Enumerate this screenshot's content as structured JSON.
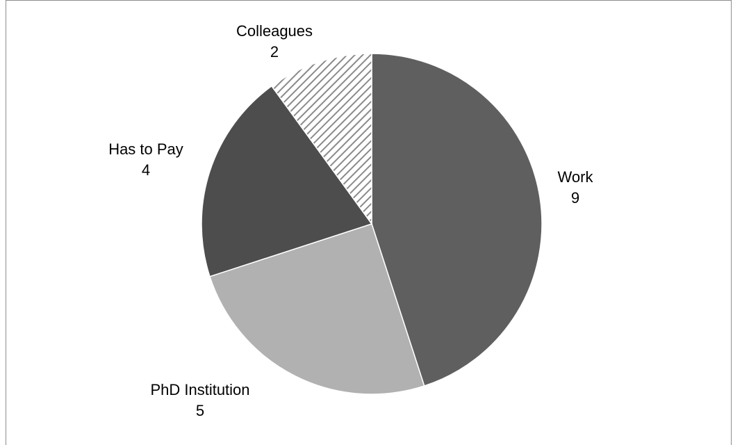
{
  "chart_data": {
    "type": "pie",
    "categories": [
      "Work",
      "PhD Institution",
      "Has to Pay",
      "Colleagues"
    ],
    "values": [
      9,
      5,
      4,
      2
    ],
    "value_labels": [
      "9",
      "5",
      "4",
      "2"
    ],
    "start_angle_deg": 0,
    "direction": "clockwise",
    "colors": [
      "#5f5f5f",
      "#b1b1b1",
      "#4d4d4d",
      "hatch"
    ],
    "legend": "none",
    "title": ""
  }
}
